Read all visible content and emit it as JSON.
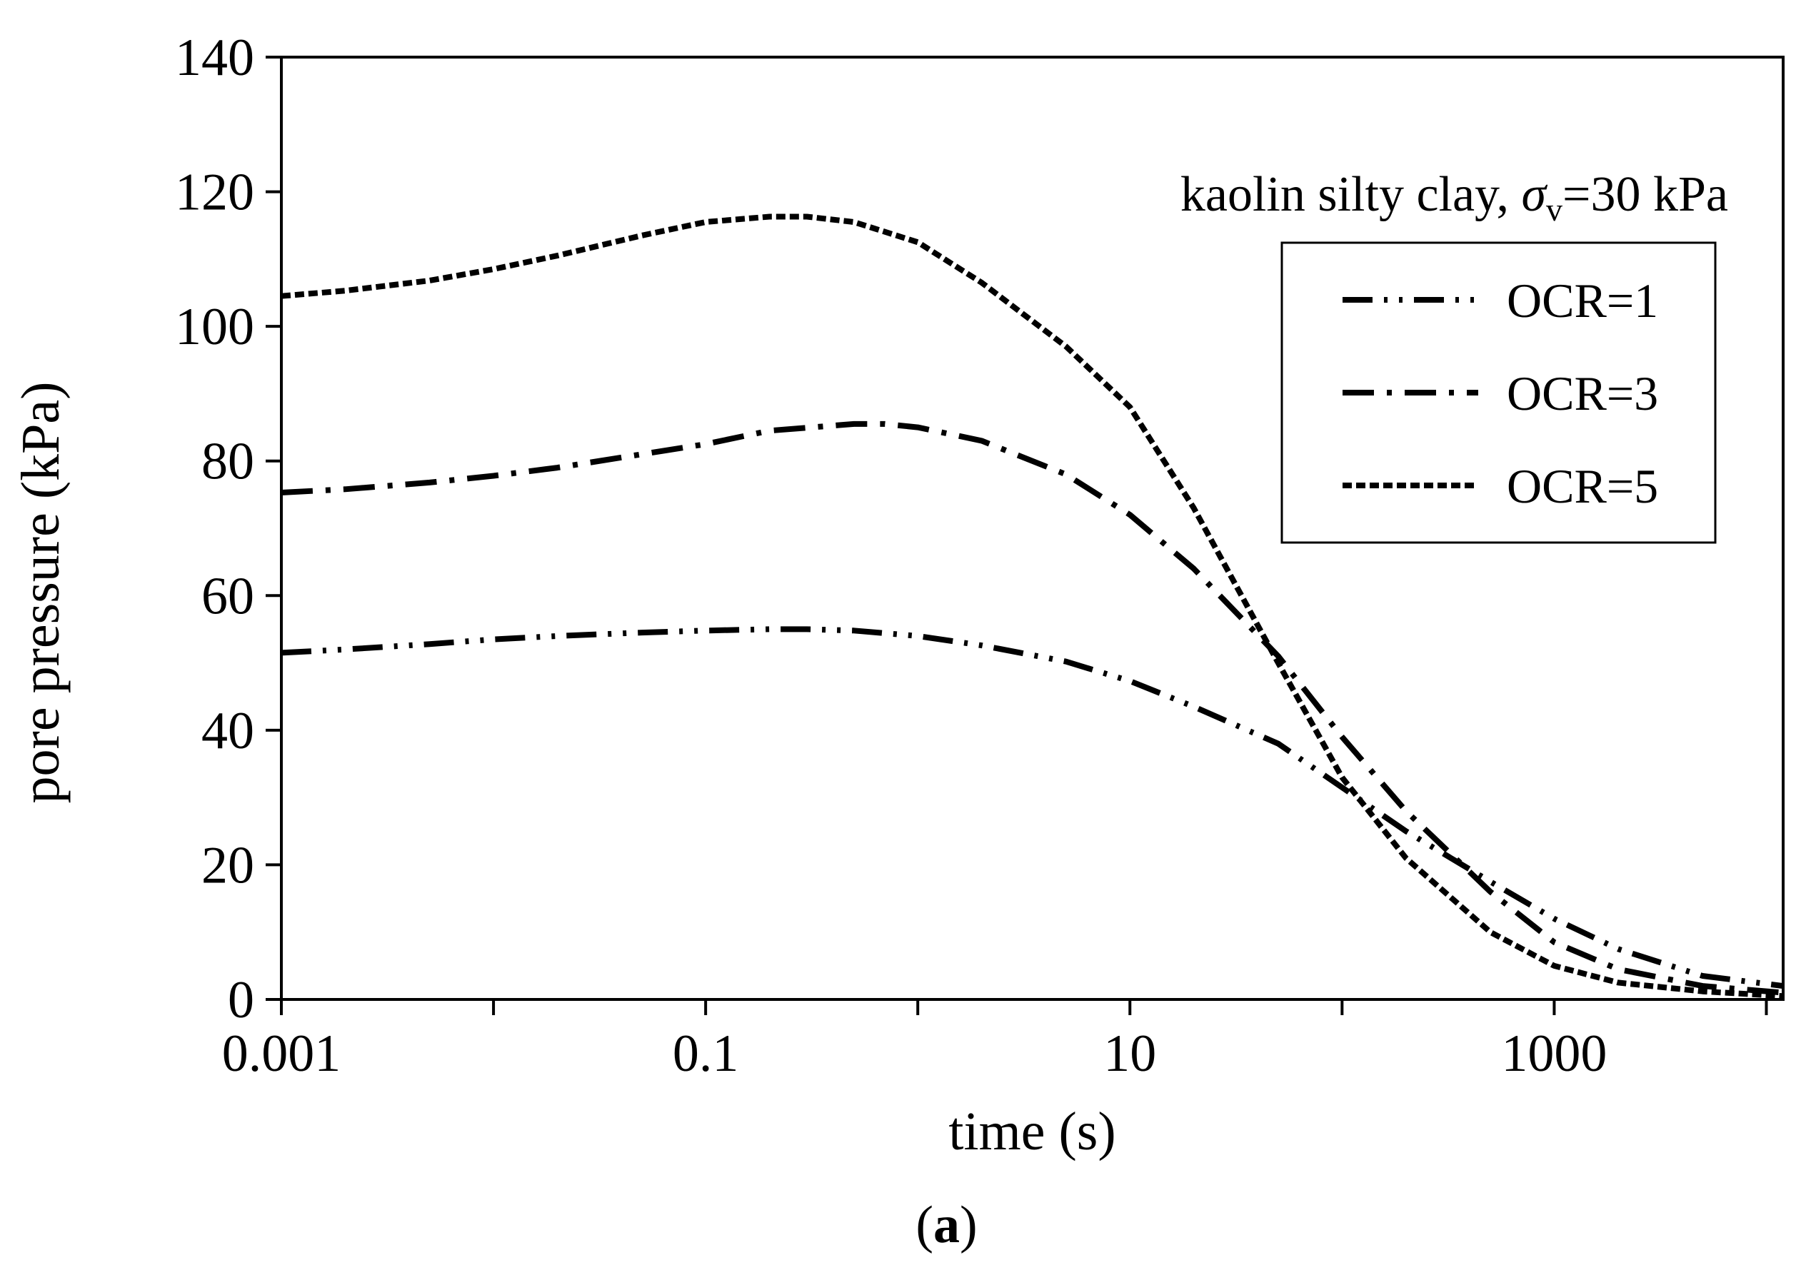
{
  "chart_data": {
    "type": "line",
    "xscale": "log",
    "xlabel": "time (s)",
    "ylabel": "pore pressure (kPa)",
    "xlim": [
      0.001,
      12000
    ],
    "ylim": [
      0,
      140
    ],
    "xticks": [
      0.001,
      0.1,
      10,
      1000
    ],
    "xtick_labels": [
      "0.001",
      "0.1",
      "10",
      "1000"
    ],
    "yticks": [
      0,
      20,
      40,
      60,
      80,
      100,
      120,
      140
    ],
    "ytick_labels": [
      "0",
      "20",
      "40",
      "60",
      "80",
      "100",
      "120",
      "140"
    ],
    "annotation": {
      "prefix": "kaolin silty clay, ",
      "symbol": "σ",
      "subscript": "v",
      "suffix": "=30 kPa"
    },
    "caption": {
      "open": "(",
      "letter": "a",
      "close": ")"
    },
    "legend_position": "top-right",
    "series": [
      {
        "name": "OCR=1",
        "dash": "long-dash-dot-dot",
        "x": [
          0.001,
          0.002,
          0.005,
          0.01,
          0.02,
          0.05,
          0.1,
          0.2,
          0.3,
          0.5,
          1,
          2,
          5,
          10,
          20,
          50,
          100,
          200,
          500,
          1000,
          2000,
          5000,
          12000
        ],
        "y": [
          51.5,
          52,
          52.8,
          53.5,
          54,
          54.5,
          54.8,
          55,
          55,
          54.8,
          54,
          52.6,
          50.2,
          47.3,
          43.5,
          38,
          31.5,
          25,
          17.5,
          12,
          7.5,
          3.5,
          2
        ]
      },
      {
        "name": "OCR=3",
        "dash": "long-dash-dot",
        "x": [
          0.001,
          0.002,
          0.005,
          0.01,
          0.02,
          0.05,
          0.1,
          0.2,
          0.5,
          0.7,
          1,
          2,
          5,
          10,
          20,
          50,
          100,
          200,
          500,
          1000,
          2000,
          5000,
          12000
        ],
        "y": [
          75.3,
          75.8,
          76.8,
          77.8,
          79,
          81,
          82.5,
          84.5,
          85.5,
          85.5,
          85,
          83,
          78,
          72,
          64,
          51,
          39,
          28,
          16,
          8.5,
          4.5,
          2,
          1
        ]
      },
      {
        "name": "OCR=5",
        "dash": "short-dash",
        "x": [
          0.001,
          0.002,
          0.005,
          0.01,
          0.02,
          0.05,
          0.1,
          0.2,
          0.3,
          0.5,
          1,
          2,
          5,
          10,
          20,
          50,
          100,
          200,
          500,
          1000,
          2000,
          5000,
          12000
        ],
        "y": [
          104.5,
          105.3,
          106.8,
          108.5,
          110.5,
          113.5,
          115.5,
          116.3,
          116.3,
          115.5,
          112.5,
          106.5,
          97,
          88,
          73,
          50,
          33,
          21,
          10,
          5,
          2.5,
          1.2,
          0.5
        ]
      }
    ]
  }
}
